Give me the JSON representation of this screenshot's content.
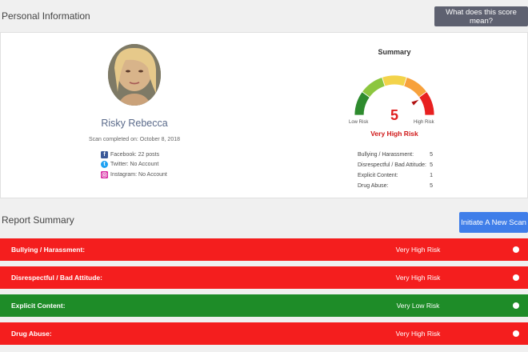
{
  "personal_info": {
    "title": "Personal Information",
    "score_button": "What does this score mean?"
  },
  "profile": {
    "name": "Risky Rebecca",
    "scan_date": "Scan completed on: October 8, 2018",
    "socials": [
      {
        "icon": "facebook-icon",
        "color": "#3b5998",
        "text": "Facebook: 22 posts"
      },
      {
        "icon": "twitter-icon",
        "color": "#1da1f2",
        "text": "Twitter: No Account"
      },
      {
        "icon": "instagram-icon",
        "color": "#d6249f",
        "text": "Instagram: No Account"
      }
    ]
  },
  "summary": {
    "title": "Summary",
    "score": "5",
    "gauge_value": 5,
    "gauge_max": 5,
    "low_label": "Low Risk",
    "high_label": "High Risk",
    "risk_level": "Very High Risk",
    "categories": [
      {
        "label": "Bullying / Harassment:",
        "value": "5"
      },
      {
        "label": "Disrespectful / Bad Attitude:",
        "value": "5"
      },
      {
        "label": "Explicit Content:",
        "value": "1"
      },
      {
        "label": "Drug Abuse:",
        "value": "5"
      }
    ]
  },
  "report": {
    "title": "Report Summary",
    "new_scan_button": "Initiate A New Scan",
    "rows": [
      {
        "label": "Bullying / Harassment:",
        "risk": "Very High Risk",
        "color": "#f41e1e"
      },
      {
        "label": "Disrespectful / Bad Attitude:",
        "risk": "Very High Risk",
        "color": "#f41e1e"
      },
      {
        "label": "Explicit Content:",
        "risk": "Very Low Risk",
        "color": "#1e8c28"
      },
      {
        "label": "Drug Abuse:",
        "risk": "Very High Risk",
        "color": "#f41e1e"
      }
    ]
  },
  "colors": {
    "gauge_segments": [
      "#2e8b2e",
      "#8cc63f",
      "#f3d34a",
      "#f7a13c",
      "#e82020"
    ],
    "danger": "#e02020"
  }
}
